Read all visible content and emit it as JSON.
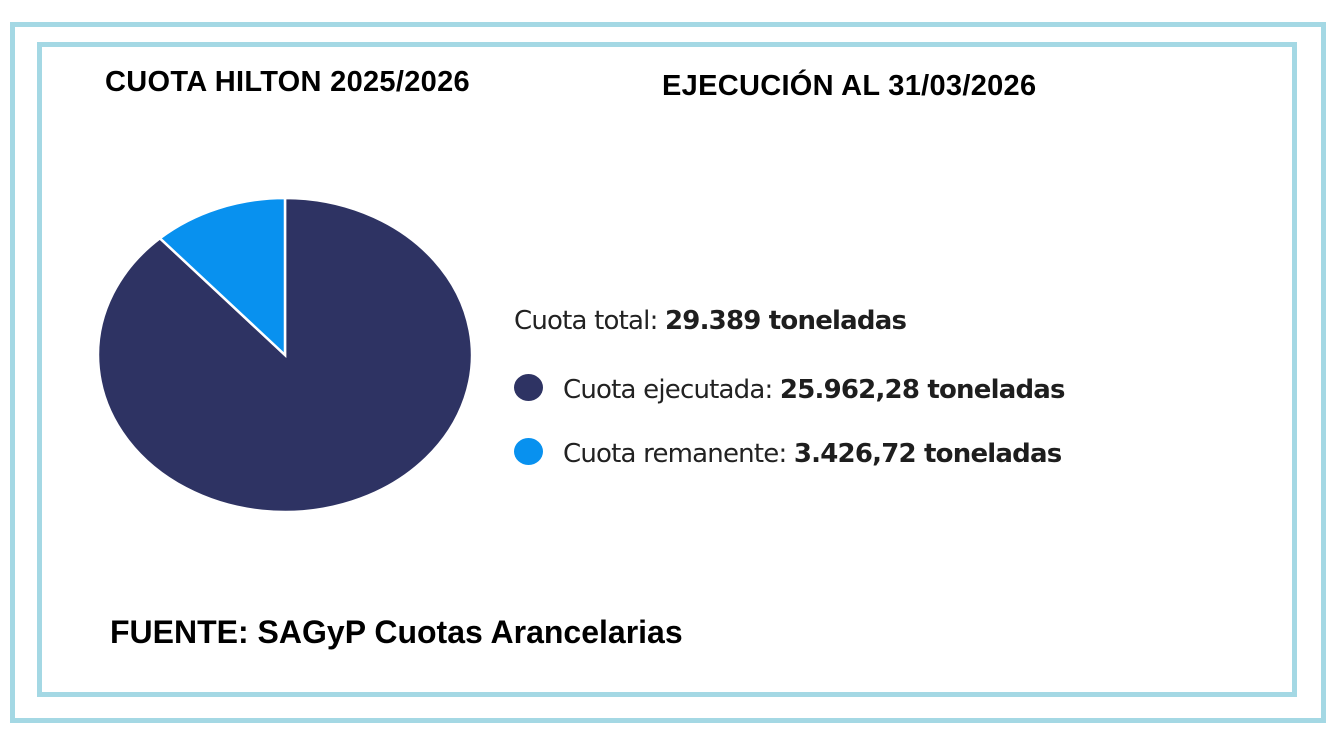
{
  "chart_data": {
    "type": "pie",
    "title": "CUOTA HILTON 2025/2026",
    "subtitle": "EJECUCIÓN AL 31/03/2026",
    "source": "FUENTE: SAGyP Cuotas Arancelarias",
    "total": {
      "label": "Cuota total:",
      "value_text": "29.389 toneladas",
      "value": 29389
    },
    "slices": [
      {
        "label": "Cuota ejecutada:",
        "value_text": "25.962,28 toneladas",
        "value": 25962.28,
        "color": "#2e3363"
      },
      {
        "label": "Cuota remanente:",
        "value_text": "3.426,72 toneladas",
        "value": 3426.72,
        "color": "#0891ef"
      }
    ],
    "legend_position": "right"
  },
  "colors": {
    "border": "#a4d8e4"
  }
}
